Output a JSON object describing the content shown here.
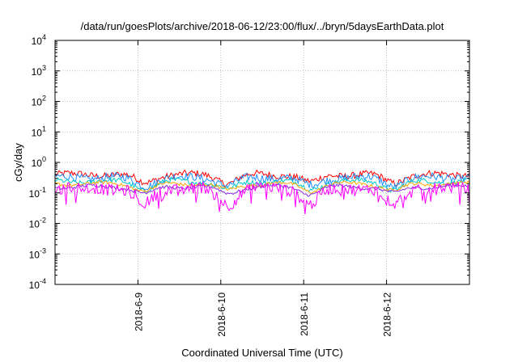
{
  "chart_data": {
    "type": "line",
    "title": "/data/run/goesPlots/archive/2018-06-12/23:00/flux/../bryn/5daysEarthData.plot",
    "xlabel": "Coordinated Universal Time (UTC)",
    "ylabel": "cGy/day",
    "x_range": [
      "2018-06-08 00:00",
      "2018-06-13 00:00"
    ],
    "x_ticks": [
      "2018-6-9",
      "2018-6-10",
      "2018-6-11",
      "2018-6-12"
    ],
    "y_scale": "log",
    "y_range": [
      0.0001,
      10000
    ],
    "y_ticks": [
      {
        "base": "10",
        "exp": "-4"
      },
      {
        "base": "10",
        "exp": "-3"
      },
      {
        "base": "10",
        "exp": "-2"
      },
      {
        "base": "10",
        "exp": "-1"
      },
      {
        "base": "10",
        "exp": "0"
      },
      {
        "base": "10",
        "exp": "1"
      },
      {
        "base": "10",
        "exp": "2"
      },
      {
        "base": "10",
        "exp": "3"
      },
      {
        "base": "10",
        "exp": "4"
      }
    ],
    "grid": true,
    "legend": "none",
    "dips": [
      "2018-06-09 02:00",
      "2018-06-10 02:00",
      "2018-06-11 02:00",
      "2018-06-12 02:00"
    ],
    "series": [
      {
        "color": "#ff0000",
        "base": 0.4,
        "noise": 0.25,
        "min_dip": 0.55
      },
      {
        "color": "#1e90ff",
        "base": 0.32,
        "noise": 0.3,
        "min_dip": 0.55
      },
      {
        "color": "#00c8c8",
        "base": 0.24,
        "noise": 0.18,
        "min_dip": 0.55
      },
      {
        "color": "#ffa500",
        "base": 0.2,
        "noise": 0.12,
        "min_dip": 0.6
      },
      {
        "color": "#8a2be2",
        "base": 0.16,
        "noise": 0.12,
        "min_dip": 0.6
      },
      {
        "color": "#ff00ff",
        "base": 0.14,
        "noise": 0.45,
        "min_dip": 0.3
      }
    ]
  }
}
